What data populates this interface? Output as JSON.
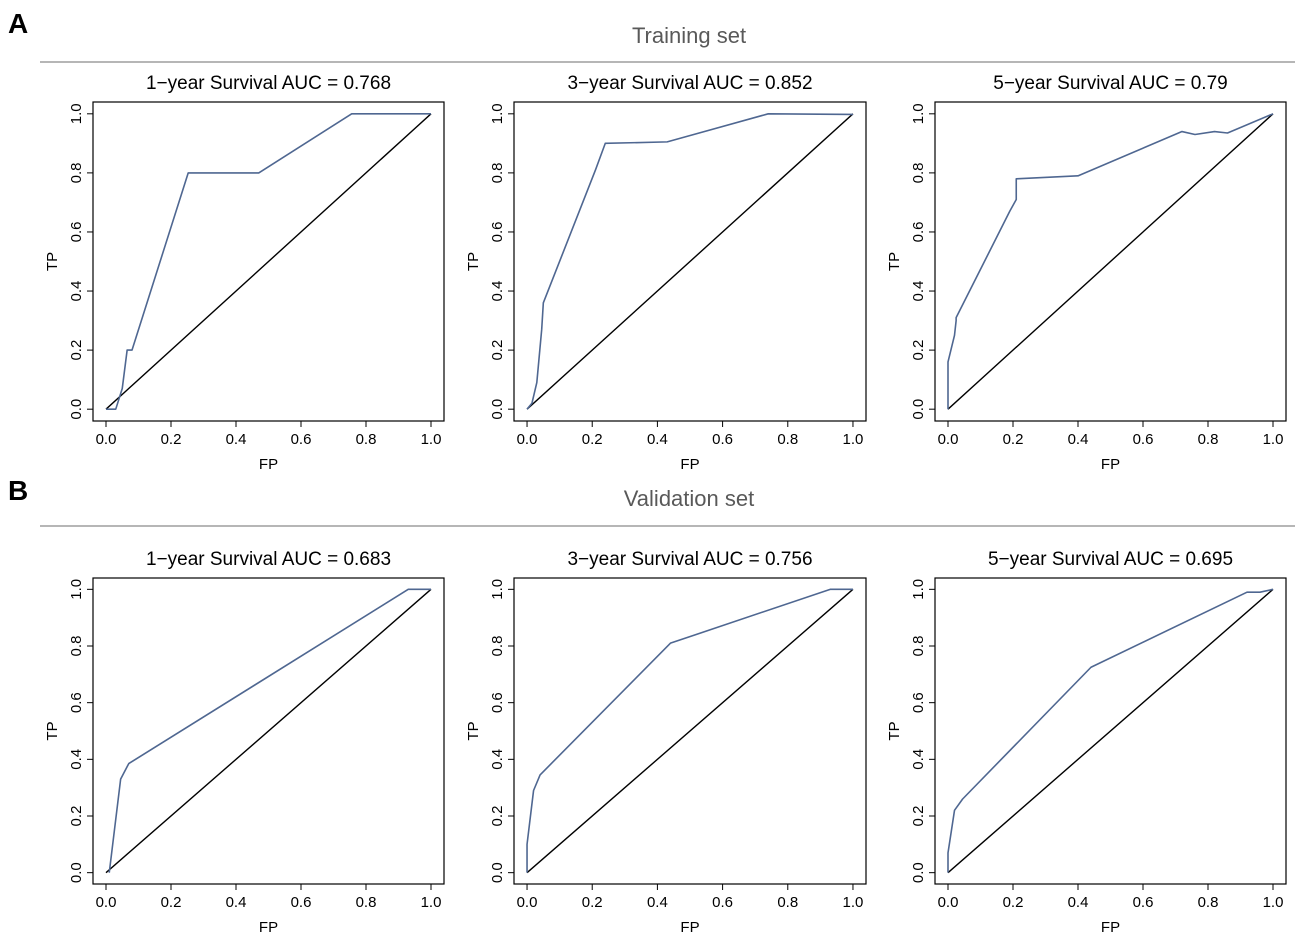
{
  "panels": [
    {
      "letter": "A",
      "section_title": "Training set"
    },
    {
      "letter": "B",
      "section_title": "Validation set"
    }
  ],
  "colors": {
    "roc_line": "#4f6791",
    "diagonal": "#000000",
    "section_title": "#595959",
    "divider": "#8a8a8a"
  },
  "chart_data": [
    {
      "type": "line",
      "panel": "A",
      "title": "1−year Survival AUC = 0.768",
      "xlabel": "FP",
      "ylabel": "TP",
      "xlim": [
        -0.04,
        1.04
      ],
      "ylim": [
        -0.04,
        1.04
      ],
      "xticks": [
        "0.0",
        "0.2",
        "0.4",
        "0.6",
        "0.8",
        "1.0"
      ],
      "yticks": [
        "0.0",
        "0.2",
        "0.4",
        "0.6",
        "0.8",
        "1.0"
      ],
      "reference_line": [
        [
          0,
          0
        ],
        [
          1,
          1
        ]
      ],
      "series": [
        {
          "x": [
            0,
            0.03,
            0.05,
            0.065,
            0.08,
            0.253,
            0.47,
            0.756,
            1.0
          ],
          "y": [
            0,
            0,
            0.07,
            0.2,
            0.2,
            0.8,
            0.8,
            1.0,
            1.0
          ]
        }
      ]
    },
    {
      "type": "line",
      "panel": "A",
      "title": "3−year Survival AUC = 0.852",
      "xlabel": "FP",
      "ylabel": "TP",
      "xlim": [
        -0.04,
        1.04
      ],
      "ylim": [
        -0.04,
        1.04
      ],
      "xticks": [
        "0.0",
        "0.2",
        "0.4",
        "0.6",
        "0.8",
        "1.0"
      ],
      "yticks": [
        "0.0",
        "0.2",
        "0.4",
        "0.6",
        "0.8",
        "1.0"
      ],
      "reference_line": [
        [
          0,
          0
        ],
        [
          1,
          1
        ]
      ],
      "series": [
        {
          "x": [
            0,
            0.015,
            0.03,
            0.045,
            0.05,
            0.05,
            0.21,
            0.24,
            0.43,
            0.74,
            1.0
          ],
          "y": [
            0,
            0.02,
            0.09,
            0.27,
            0.36,
            0.36,
            0.81,
            0.9,
            0.905,
            1.0,
            0.998
          ]
        }
      ]
    },
    {
      "type": "line",
      "panel": "A",
      "title": "5−year Survival AUC = 0.79",
      "xlabel": "FP",
      "ylabel": "TP",
      "xlim": [
        -0.04,
        1.04
      ],
      "ylim": [
        -0.04,
        1.04
      ],
      "xticks": [
        "0.0",
        "0.2",
        "0.4",
        "0.6",
        "0.8",
        "1.0"
      ],
      "yticks": [
        "0.0",
        "0.2",
        "0.4",
        "0.6",
        "0.8",
        "1.0"
      ],
      "reference_line": [
        [
          0,
          0
        ],
        [
          1,
          1
        ]
      ],
      "series": [
        {
          "x": [
            0,
            0,
            0.02,
            0.025,
            0.025,
            0.19,
            0.21,
            0.21,
            0.4,
            0.72,
            0.76,
            0.82,
            0.86,
            1.0
          ],
          "y": [
            0,
            0.16,
            0.25,
            0.3,
            0.31,
            0.67,
            0.71,
            0.78,
            0.79,
            0.94,
            0.93,
            0.94,
            0.935,
            1.0
          ]
        }
      ]
    },
    {
      "type": "line",
      "panel": "B",
      "title": "1−year Survival AUC = 0.683",
      "xlabel": "FP",
      "ylabel": "TP",
      "xlim": [
        -0.04,
        1.04
      ],
      "ylim": [
        -0.04,
        1.04
      ],
      "xticks": [
        "0.0",
        "0.2",
        "0.4",
        "0.6",
        "0.8",
        "1.0"
      ],
      "yticks": [
        "0.0",
        "0.2",
        "0.4",
        "0.6",
        "0.8",
        "1.0"
      ],
      "reference_line": [
        [
          0,
          0
        ],
        [
          1,
          1
        ]
      ],
      "series": [
        {
          "x": [
            0.01,
            0.045,
            0.07,
            0.93,
            0.98,
            1.0
          ],
          "y": [
            0,
            0.33,
            0.385,
            1.0,
            1.0,
            1.0
          ]
        }
      ]
    },
    {
      "type": "line",
      "panel": "B",
      "title": "3−year Survival AUC = 0.756",
      "xlabel": "FP",
      "ylabel": "TP",
      "xlim": [
        -0.04,
        1.04
      ],
      "ylim": [
        -0.04,
        1.04
      ],
      "xticks": [
        "0.0",
        "0.2",
        "0.4",
        "0.6",
        "0.8",
        "1.0"
      ],
      "yticks": [
        "0.0",
        "0.2",
        "0.4",
        "0.6",
        "0.8",
        "1.0"
      ],
      "reference_line": [
        [
          0,
          0
        ],
        [
          1,
          1
        ]
      ],
      "series": [
        {
          "x": [
            0,
            0,
            0.02,
            0.04,
            0.44,
            0.93,
            1.0
          ],
          "y": [
            0,
            0.1,
            0.29,
            0.345,
            0.81,
            1.0,
            1.0
          ]
        }
      ]
    },
    {
      "type": "line",
      "panel": "B",
      "title": "5−year Survival AUC = 0.695",
      "xlabel": "FP",
      "ylabel": "TP",
      "xlim": [
        -0.04,
        1.04
      ],
      "ylim": [
        -0.04,
        1.04
      ],
      "xticks": [
        "0.0",
        "0.2",
        "0.4",
        "0.6",
        "0.8",
        "1.0"
      ],
      "yticks": [
        "0.0",
        "0.2",
        "0.4",
        "0.6",
        "0.8",
        "1.0"
      ],
      "reference_line": [
        [
          0,
          0
        ],
        [
          1,
          1
        ]
      ],
      "series": [
        {
          "x": [
            0,
            0,
            0.02,
            0.045,
            0.44,
            0.92,
            0.96,
            1.0
          ],
          "y": [
            0,
            0.07,
            0.22,
            0.26,
            0.725,
            0.99,
            0.99,
            1.0
          ]
        }
      ]
    }
  ]
}
